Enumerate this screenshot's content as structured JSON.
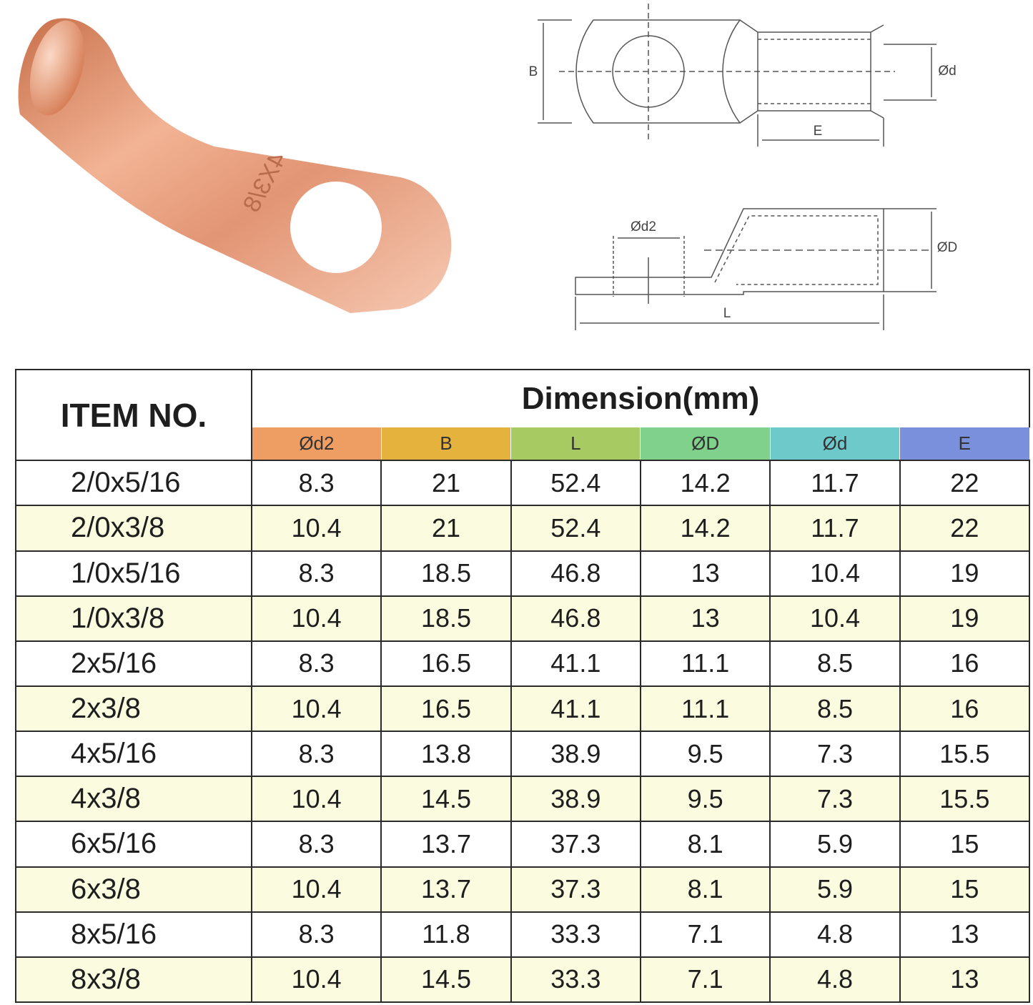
{
  "lug": {
    "stamp": "4X3/8"
  },
  "diagram": {
    "top": {
      "B": "B",
      "d": "Ød",
      "E": "E"
    },
    "side": {
      "d2": "Ød2",
      "D": "ØD",
      "L": "L"
    }
  },
  "table": {
    "item_header": "ITEM NO.",
    "dimension_header": "Dimension(mm)",
    "columns": [
      "Ød2",
      "B",
      "L",
      "ØD",
      "Ød",
      "E"
    ],
    "rows": [
      [
        "2/0x5/16",
        8.3,
        21,
        52.4,
        14.2,
        11.7,
        22
      ],
      [
        "2/0x3/8",
        10.4,
        21,
        52.4,
        14.2,
        11.7,
        22
      ],
      [
        "1/0x5/16",
        8.3,
        18.5,
        46.8,
        13,
        10.4,
        19
      ],
      [
        "1/0x3/8",
        10.4,
        18.5,
        46.8,
        13,
        10.4,
        19
      ],
      [
        "2x5/16",
        8.3,
        16.5,
        41.1,
        11.1,
        8.5,
        16
      ],
      [
        "2x3/8",
        10.4,
        16.5,
        41.1,
        11.1,
        8.5,
        16
      ],
      [
        "4x5/16",
        8.3,
        13.8,
        38.9,
        9.5,
        7.3,
        15.5
      ],
      [
        "4x3/8",
        10.4,
        14.5,
        38.9,
        9.5,
        7.3,
        15.5
      ],
      [
        "6x5/16",
        8.3,
        13.7,
        37.3,
        8.1,
        5.9,
        15
      ],
      [
        "6x3/8",
        10.4,
        13.7,
        37.3,
        8.1,
        5.9,
        15
      ],
      [
        "8x5/16",
        8.3,
        11.8,
        33.3,
        7.1,
        4.8,
        13
      ],
      [
        "8x3/8",
        10.4,
        14.5,
        33.3,
        7.1,
        4.8,
        13
      ]
    ]
  }
}
